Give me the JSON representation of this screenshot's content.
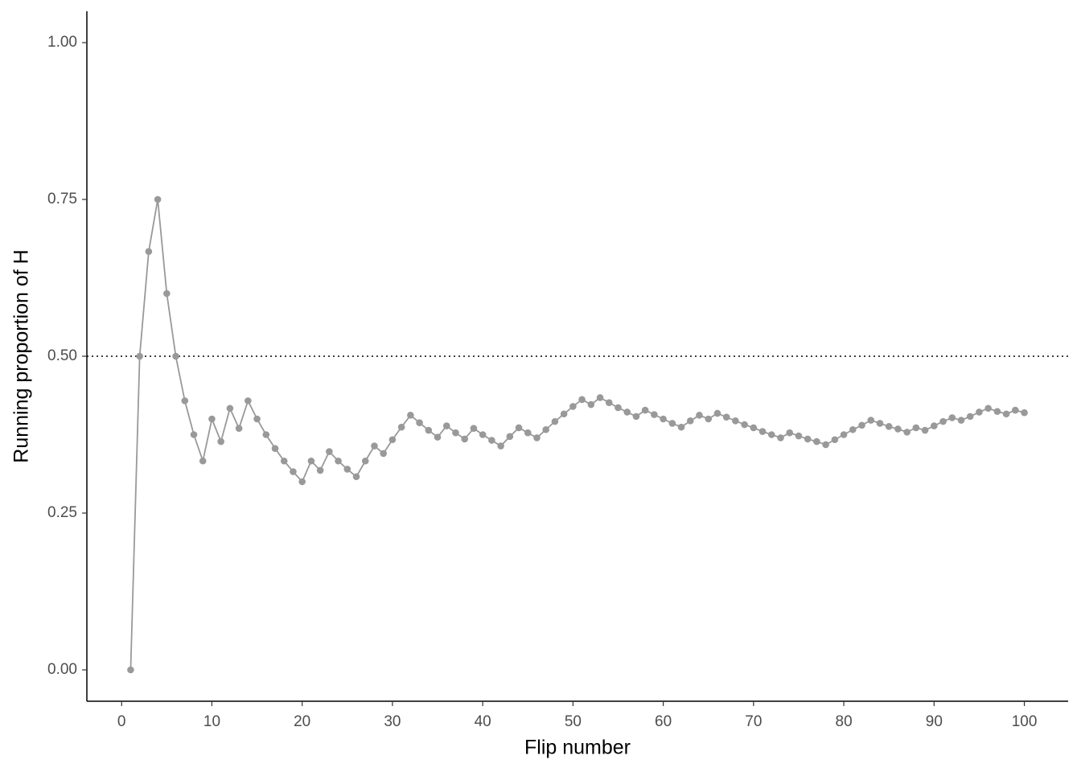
{
  "chart_data": {
    "type": "line",
    "xlabel": "Flip number",
    "ylabel": "Running proportion of H",
    "x": [
      1,
      2,
      3,
      4,
      5,
      6,
      7,
      8,
      9,
      10,
      11,
      12,
      13,
      14,
      15,
      16,
      17,
      18,
      19,
      20,
      21,
      22,
      23,
      24,
      25,
      26,
      27,
      28,
      29,
      30,
      31,
      32,
      33,
      34,
      35,
      36,
      37,
      38,
      39,
      40,
      41,
      42,
      43,
      44,
      45,
      46,
      47,
      48,
      49,
      50,
      51,
      52,
      53,
      54,
      55,
      56,
      57,
      58,
      59,
      60,
      61,
      62,
      63,
      64,
      65,
      66,
      67,
      68,
      69,
      70,
      71,
      72,
      73,
      74,
      75,
      76,
      77,
      78,
      79,
      80,
      81,
      82,
      83,
      84,
      85,
      86,
      87,
      88,
      89,
      90,
      91,
      92,
      93,
      94,
      95,
      96,
      97,
      98,
      99,
      100
    ],
    "series": [
      {
        "color": "#999999",
        "values": [
          0,
          0.5,
          0.667,
          0.75,
          0.6,
          0.5,
          0.429,
          0.375,
          0.333,
          0.4,
          0.364,
          0.417,
          0.385,
          0.429,
          0.4,
          0.375,
          0.353,
          0.333,
          0.316,
          0.3,
          0.333,
          0.318,
          0.348,
          0.333,
          0.32,
          0.308,
          0.333,
          0.357,
          0.345,
          0.367,
          0.387,
          0.406,
          0.394,
          0.382,
          0.371,
          0.389,
          0.378,
          0.368,
          0.385,
          0.375,
          0.366,
          0.357,
          0.372,
          0.386,
          0.378,
          0.37,
          0.383,
          0.396,
          0.408,
          0.42,
          0.431,
          0.423,
          0.434,
          0.426,
          0.418,
          0.411,
          0.404,
          0.414,
          0.407,
          0.4,
          0.393,
          0.387,
          0.397,
          0.406,
          0.4,
          0.409,
          0.403,
          0.397,
          0.391,
          0.386,
          0.38,
          0.375,
          0.37,
          0.378,
          0.373,
          0.368,
          0.364,
          0.359,
          0.367,
          0.375,
          0.383,
          0.39,
          0.398,
          0.393,
          0.388,
          0.384,
          0.379,
          0.386,
          0.382,
          0.389,
          0.396,
          0.402,
          0.398,
          0.404,
          0.411,
          0.417,
          0.412,
          0.408,
          0.414,
          0.41
        ]
      }
    ],
    "hline": 0.5,
    "xlim": [
      -3.85,
      104.85
    ],
    "xticks": [
      0,
      10,
      20,
      30,
      40,
      50,
      60,
      70,
      80,
      90,
      100
    ],
    "ylim": [
      -0.05,
      1.05
    ],
    "yticks": [
      {
        "value": 0,
        "label": "0.00"
      },
      {
        "value": 0.25,
        "label": "0.25"
      },
      {
        "value": 0.5,
        "label": "0.50"
      },
      {
        "value": 0.75,
        "label": "0.75"
      },
      {
        "value": 1,
        "label": "1.00"
      }
    ],
    "grid": false
  }
}
